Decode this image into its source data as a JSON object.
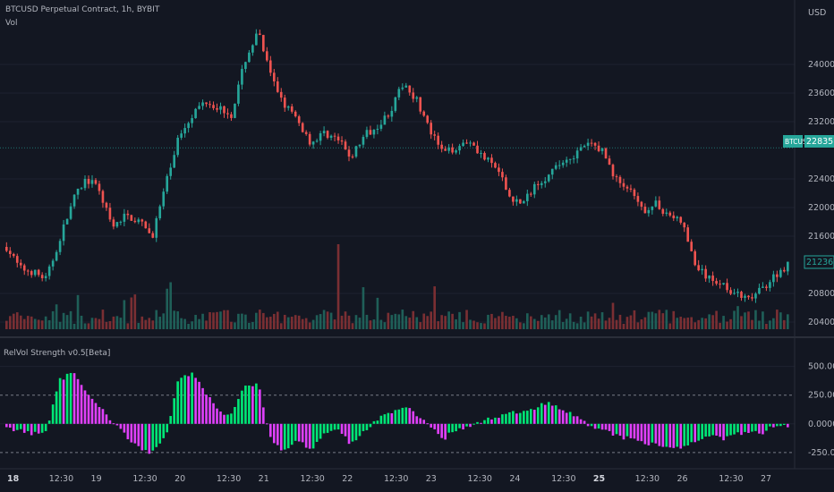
{
  "header": {
    "symbol_line": "BTCUSD Perpetual Contract, 1h, BYBIT",
    "vol_label": "Vol",
    "currency": "USD"
  },
  "price_axis": {
    "labels": [
      "24000.0",
      "23600.0",
      "23200.0",
      "22400.0",
      "22000.0",
      "21600.0",
      "20800.0",
      "20400.0"
    ],
    "values": [
      24000,
      23600,
      23200,
      22400,
      22000,
      21600,
      20800,
      20400
    ]
  },
  "price_tags": {
    "symbol": "BTCUSD",
    "last": "22835.0",
    "last_value": 22835,
    "other": "21236.5",
    "other_value": 21236.5
  },
  "indicator": {
    "title": "RelVol Strength v0.5[Beta]",
    "axis_labels": [
      "500.0000",
      "250.0000",
      "0.0000",
      "-250.0000"
    ],
    "axis_values": [
      500,
      250,
      0,
      -250
    ],
    "levels": [
      250,
      -250
    ]
  },
  "time_axis": {
    "labels": [
      "18",
      "12:30",
      "19",
      "12:30",
      "20",
      "12:30",
      "21",
      "12:30",
      "22",
      "12:30",
      "23",
      "12:30",
      "24",
      "12:30",
      "25",
      "12:30",
      "26",
      "12:30",
      "27"
    ],
    "bold": [
      "18",
      "25"
    ]
  },
  "colors": {
    "bg": "#131722",
    "up": "#26a69a",
    "down": "#ef5350",
    "vol_up": "#1f5f58",
    "vol_down": "#7a2f33",
    "osc_green": "#00e676",
    "osc_purple": "#e040fb",
    "grid": "#1e2230"
  },
  "chart_data": {
    "type": "candlestick",
    "ylim": [
      20300,
      24650
    ],
    "close_path": [
      21450,
      21150,
      21100,
      21000,
      21550,
      22100,
      22400,
      22250,
      21700,
      21900,
      21800,
      21600,
      22300,
      23000,
      23300,
      23500,
      23400,
      23300,
      24050,
      24450,
      23800,
      23450,
      23200,
      22900,
      23050,
      22950,
      22700,
      23000,
      23150,
      23350,
      23750,
      23500,
      23050,
      22750,
      22850,
      22950,
      22700,
      22550,
      22150,
      22050,
      22350,
      22450,
      22650,
      22750,
      22900,
      22800,
      22400,
      22250,
      21950,
      22050,
      21900,
      21800,
      21200,
      21000,
      20950,
      20800,
      20700,
      20850,
      21050,
      21200
    ],
    "osc_path": [
      -30,
      -60,
      -90,
      -70,
      380,
      460,
      260,
      150,
      20,
      -100,
      -210,
      -250,
      -120,
      390,
      430,
      280,
      100,
      90,
      330,
      360,
      -160,
      -240,
      -150,
      -220,
      -100,
      -50,
      -180,
      -70,
      40,
      100,
      160,
      80,
      -20,
      -130,
      -40,
      -20,
      30,
      50,
      100,
      90,
      150,
      190,
      130,
      60,
      -20,
      -60,
      -100,
      -130,
      -150,
      -190,
      -200,
      -200,
      -170,
      -100,
      -130,
      -90,
      -70,
      -80,
      -20,
      -10
    ],
    "osc_ylim": [
      -360,
      700
    ]
  }
}
